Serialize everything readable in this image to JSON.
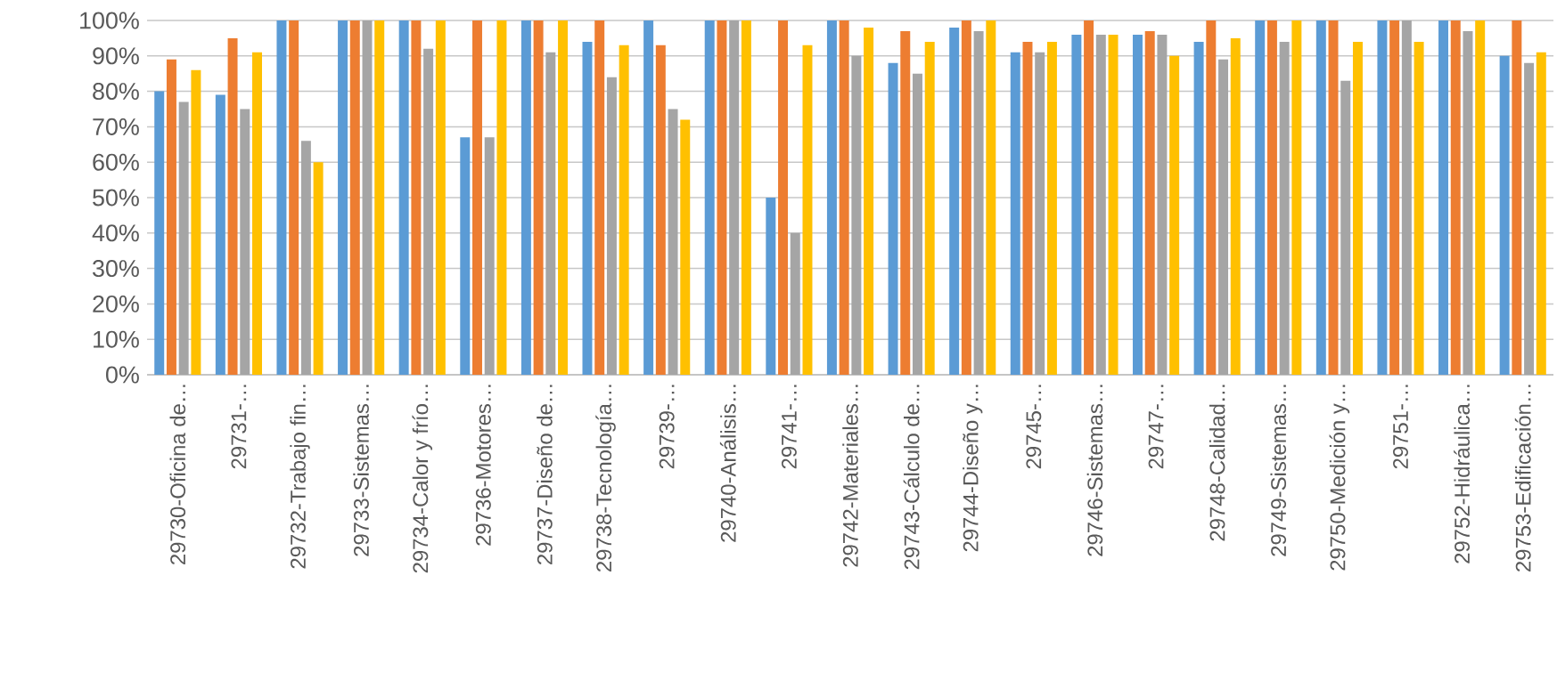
{
  "chart_data": {
    "type": "bar",
    "categories": [
      "29730-Oficina de…",
      "29731-…",
      "29732-Trabajo fin…",
      "29733-Sistemas…",
      "29734-Calor y frío…",
      "29736-Motores…",
      "29737-Diseño de…",
      "29738-Tecnología…",
      "29739-…",
      "29740-Análisis…",
      "29741-…",
      "29742-Materiales…",
      "29743-Cálculo de…",
      "29744-Diseño y…",
      "29745-…",
      "29746-Sistemas…",
      "29747-…",
      "29748-Calidad…",
      "29749-Sistemas…",
      "29750-Medición y…",
      "29751-…",
      "29752-Hidráulica…",
      "29753-Edificación…"
    ],
    "series": [
      {
        "color": "#5b9bd5",
        "values": [
          80,
          79,
          100,
          100,
          100,
          67,
          100,
          94,
          100,
          100,
          50,
          100,
          88,
          98,
          91,
          96,
          96,
          94,
          100,
          100,
          100,
          100,
          90
        ]
      },
      {
        "color": "#ed7d31",
        "values": [
          89,
          95,
          100,
          100,
          100,
          100,
          100,
          100,
          93,
          100,
          100,
          100,
          97,
          100,
          94,
          100,
          97,
          100,
          100,
          100,
          100,
          100,
          100
        ]
      },
      {
        "color": "#a5a5a5",
        "values": [
          77,
          75,
          66,
          100,
          92,
          67,
          91,
          84,
          75,
          100,
          40,
          90,
          85,
          97,
          91,
          96,
          96,
          89,
          94,
          83,
          100,
          97,
          88
        ]
      },
      {
        "color": "#ffc000",
        "values": [
          86,
          91,
          60,
          100,
          100,
          100,
          100,
          93,
          72,
          100,
          93,
          98,
          94,
          100,
          94,
          96,
          90,
          95,
          100,
          94,
          94,
          100,
          91
        ]
      }
    ],
    "ylim": [
      0,
      100
    ],
    "yticks": [
      {
        "value": 0,
        "label": "0%"
      },
      {
        "value": 10,
        "label": "10%"
      },
      {
        "value": 20,
        "label": "20%"
      },
      {
        "value": 30,
        "label": "30%"
      },
      {
        "value": 40,
        "label": "40%"
      },
      {
        "value": 50,
        "label": "50%"
      },
      {
        "value": 60,
        "label": "60%"
      },
      {
        "value": 70,
        "label": "70%"
      },
      {
        "value": 80,
        "label": "80%"
      },
      {
        "value": 90,
        "label": "90%"
      },
      {
        "value": 100,
        "label": "100%"
      }
    ],
    "grid": "y"
  }
}
